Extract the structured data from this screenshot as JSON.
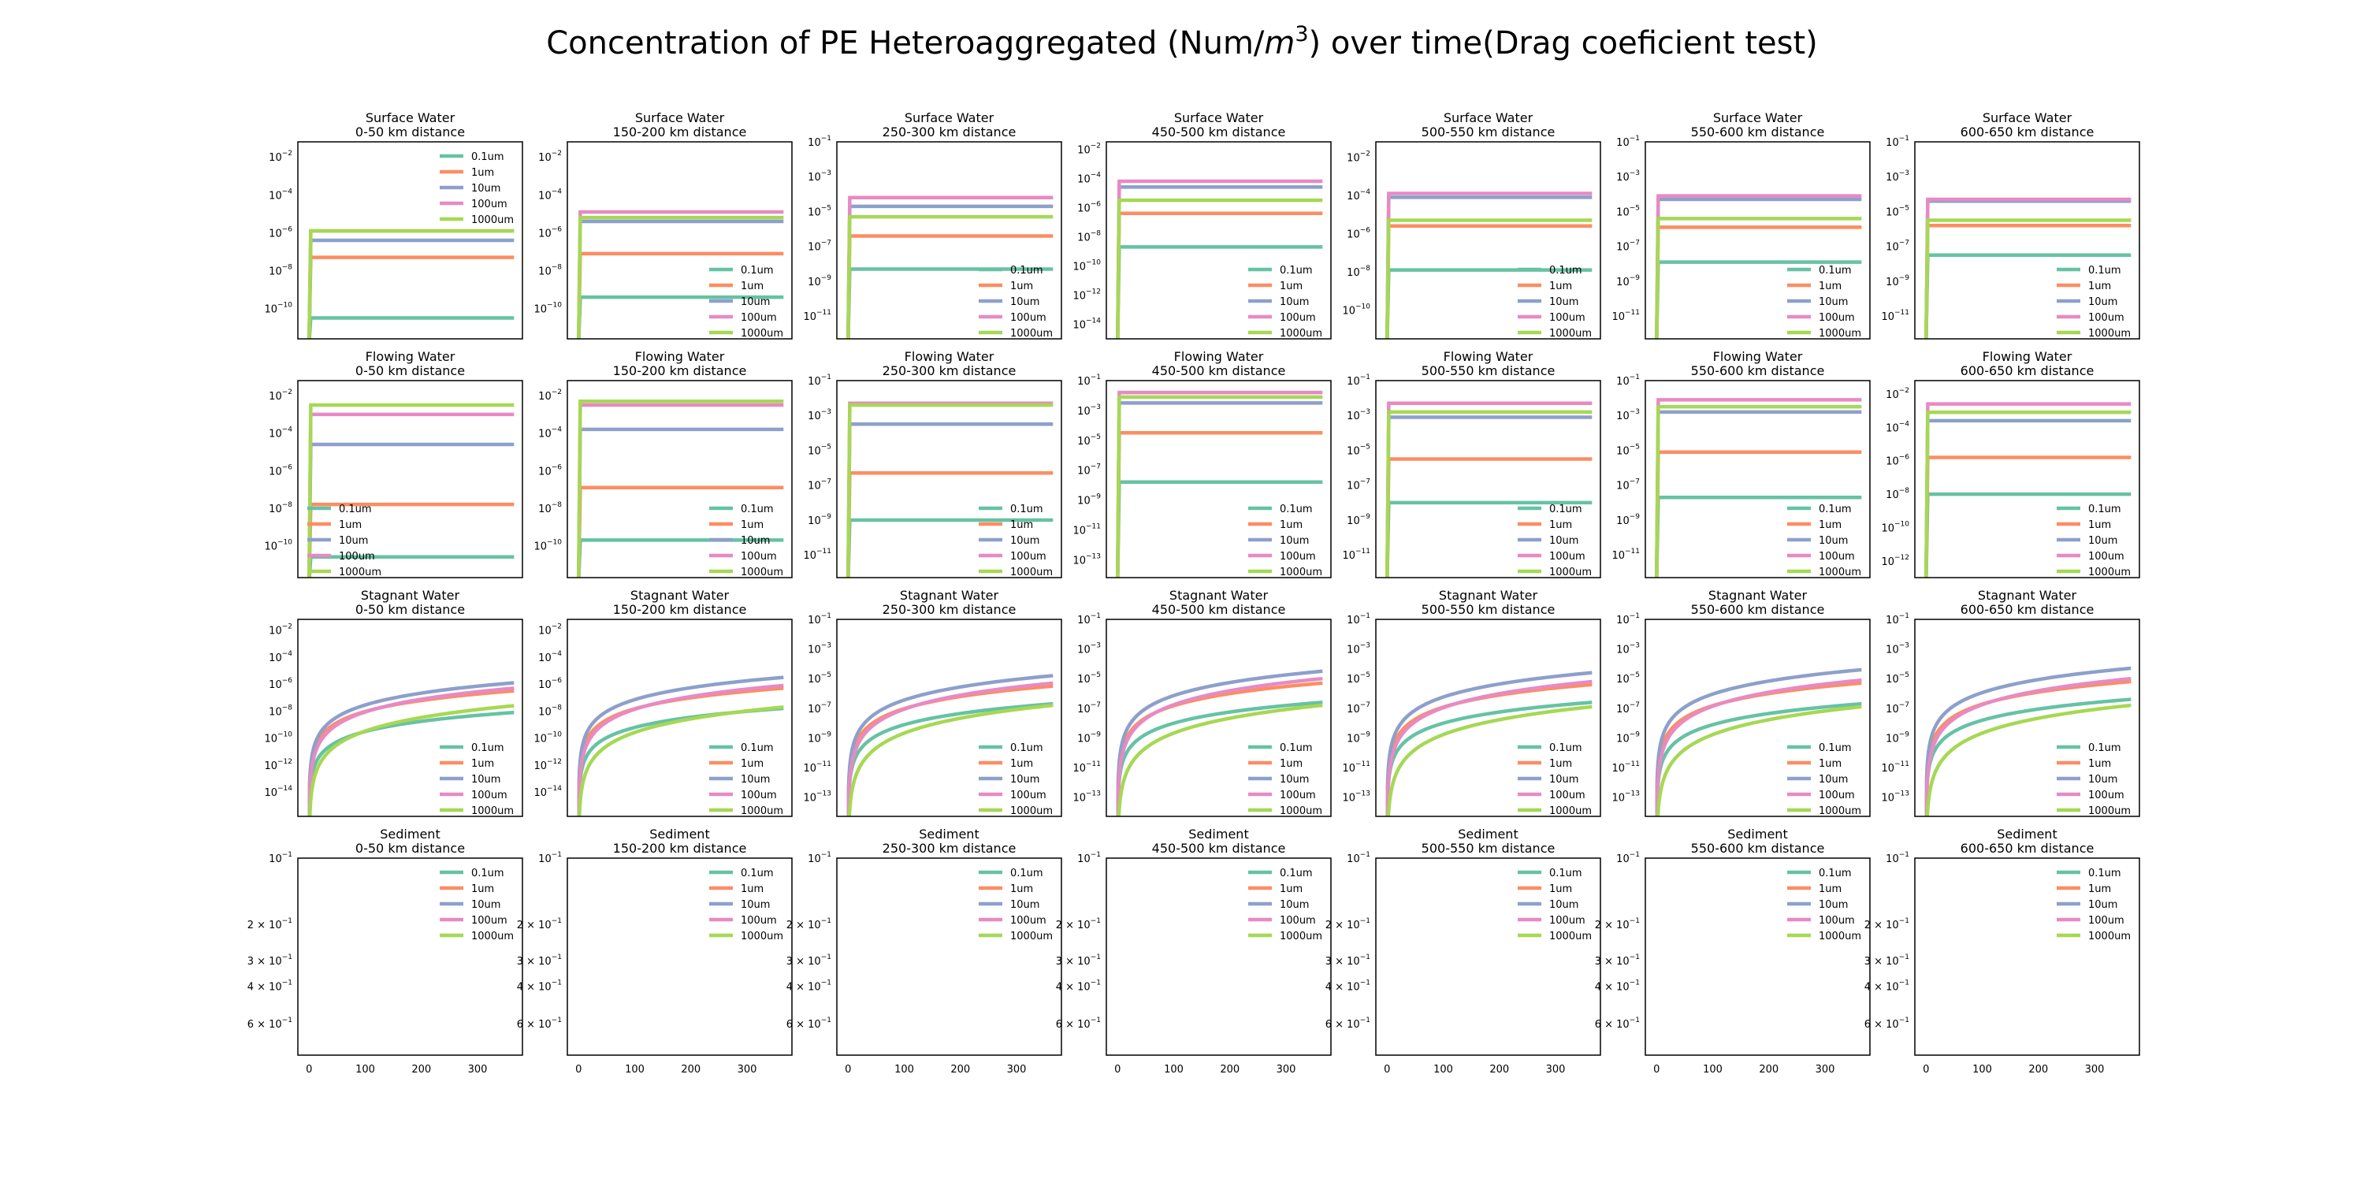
{
  "title_main": "Concentration of PE Heteroaggregated (Num/",
  "title_unit": "m",
  "title_exp": "3",
  "title_tail": ") over time(Drag coeficient test)",
  "colors": {
    "0.1um": "#66c2a5",
    "1um": "#fc8d62",
    "10um": "#8da0cb",
    "100um": "#e78ac3",
    "1000um": "#a6d854"
  },
  "chart_data": {
    "type": "line",
    "compartments": [
      "Surface Water",
      "Flowing Water",
      "Stagnant Water",
      "Sediment"
    ],
    "distances": [
      "0-50 km distance",
      "150-200 km distance",
      "250-300 km distance",
      "450-500 km distance",
      "500-550 km distance",
      "550-600 km distance",
      "600-650 km distance"
    ],
    "series_names": [
      "0.1um",
      "1um",
      "10um",
      "100um",
      "1000um"
    ],
    "x_ticks": [
      "0",
      "100",
      "200",
      "300"
    ],
    "xlim": [
      -20,
      380
    ],
    "sediment_ticks": [
      "10",
      "−1",
      "2 × 10",
      "−1",
      "3 × 10",
      "−1",
      "4 × 10",
      "−1",
      "6 × 10",
      "−1"
    ],
    "surface": [
      {
        "ylim": [
          -11.6,
          -1.2
        ],
        "ticks": [
          "-2",
          "-4",
          "-6",
          "-8",
          "-10"
        ],
        "levels": [
          -10.5,
          -7.3,
          -6.4,
          -5.9,
          -5.9
        ],
        "legend": "upper right"
      },
      {
        "ylim": [
          -11.6,
          -1.2
        ],
        "ticks": [
          "-2",
          "-4",
          "-6",
          "-8",
          "-10"
        ],
        "levels": [
          -9.4,
          -7.1,
          -5.4,
          -4.9,
          -5.2
        ],
        "legend": "lower right"
      },
      {
        "ylim": [
          -12.3,
          -1.0
        ],
        "ticks": [
          "-1",
          "-3",
          "-5",
          "-7",
          "-9",
          "-11"
        ],
        "levels": [
          -8.3,
          -6.4,
          -4.7,
          -4.2,
          -5.3
        ],
        "legend": "lower right"
      },
      {
        "ylim": [
          -15.0,
          -1.5
        ],
        "ticks": [
          "-2",
          "-4",
          "-6",
          "-8",
          "-10",
          "-12",
          "-14"
        ],
        "levels": [
          -8.7,
          -6.4,
          -4.6,
          -4.2,
          -5.5
        ],
        "legend": "lower right"
      },
      {
        "ylim": [
          -11.5,
          -1.2
        ],
        "ticks": [
          "-2",
          "-4",
          "-6",
          "-8",
          "-10"
        ],
        "levels": [
          -7.9,
          -5.6,
          -4.1,
          -3.9,
          -5.3
        ],
        "legend": "lower right"
      },
      {
        "ylim": [
          -12.3,
          -1.0
        ],
        "ticks": [
          "-1",
          "-3",
          "-5",
          "-7",
          "-9",
          "-11"
        ],
        "levels": [
          -7.9,
          -5.9,
          -4.3,
          -4.1,
          -5.4
        ],
        "legend": "lower right"
      },
      {
        "ylim": [
          -12.3,
          -1.0
        ],
        "ticks": [
          "-1",
          "-3",
          "-5",
          "-7",
          "-9",
          "-11"
        ],
        "levels": [
          -7.5,
          -5.8,
          -4.4,
          -4.3,
          -5.5
        ],
        "legend": "lower right"
      }
    ],
    "flowing": [
      {
        "ylim": [
          -11.7,
          -1.2
        ],
        "ticks": [
          "-2",
          "-4",
          "-6",
          "-8",
          "-10"
        ],
        "levels": [
          -10.6,
          -7.8,
          -4.6,
          -3.0,
          -2.5
        ],
        "legend": "lower left"
      },
      {
        "ylim": [
          -11.7,
          -1.2
        ],
        "ticks": [
          "-2",
          "-4",
          "-6",
          "-8",
          "-10"
        ],
        "levels": [
          -9.7,
          -6.9,
          -3.8,
          -2.5,
          -2.3
        ],
        "legend": "lower right"
      },
      {
        "ylim": [
          -12.3,
          -1.0
        ],
        "ticks": [
          "-1",
          "-3",
          "-5",
          "-7",
          "-9",
          "-11"
        ],
        "levels": [
          -9.0,
          -6.3,
          -3.5,
          -2.3,
          -2.4
        ],
        "legend": "lower right"
      },
      {
        "ylim": [
          -14.2,
          -1.0
        ],
        "ticks": [
          "-1",
          "-3",
          "-5",
          "-7",
          "-9",
          "-11",
          "-13"
        ],
        "levels": [
          -7.8,
          -4.5,
          -2.5,
          -1.8,
          -2.1
        ],
        "legend": "lower right"
      },
      {
        "ylim": [
          -12.3,
          -1.0
        ],
        "ticks": [
          "-1",
          "-3",
          "-5",
          "-7",
          "-9",
          "-11"
        ],
        "levels": [
          -8.0,
          -5.5,
          -3.1,
          -2.3,
          -2.8
        ],
        "legend": "lower right"
      },
      {
        "ylim": [
          -12.3,
          -1.0
        ],
        "ticks": [
          "-1",
          "-3",
          "-5",
          "-7",
          "-9",
          "-11"
        ],
        "levels": [
          -7.7,
          -5.1,
          -2.8,
          -2.1,
          -2.5
        ],
        "legend": "lower right"
      },
      {
        "ylim": [
          -13.0,
          -1.2
        ],
        "ticks": [
          "-2",
          "-4",
          "-6",
          "-8",
          "-10",
          "-12"
        ],
        "levels": [
          -8.0,
          -5.8,
          -3.6,
          -2.6,
          -3.1
        ],
        "legend": "lower right"
      }
    ],
    "stagnant": [
      {
        "ylim": [
          -15.8,
          -1.2
        ],
        "ticks": [
          "-2",
          "-4",
          "-6",
          "-8",
          "-10",
          "-12",
          "-14"
        ],
        "levels": [
          -8.1,
          -6.5,
          -5.9,
          -6.3,
          -7.6
        ],
        "legend": "lower right"
      },
      {
        "ylim": [
          -15.8,
          -1.2
        ],
        "ticks": [
          "-2",
          "-4",
          "-6",
          "-8",
          "-10",
          "-12",
          "-14"
        ],
        "levels": [
          -7.8,
          -6.3,
          -5.5,
          -6.1,
          -7.7
        ],
        "legend": "lower right"
      },
      {
        "ylim": [
          -14.3,
          -1.0
        ],
        "ticks": [
          "-1",
          "-3",
          "-5",
          "-7",
          "-9",
          "-11",
          "-13"
        ],
        "levels": [
          -6.7,
          -5.5,
          -4.8,
          -5.3,
          -6.8
        ],
        "legend": "lower right"
      },
      {
        "ylim": [
          -14.3,
          -1.0
        ],
        "ticks": [
          "-1",
          "-3",
          "-5",
          "-7",
          "-9",
          "-11",
          "-13"
        ],
        "levels": [
          -6.6,
          -5.3,
          -4.5,
          -5.0,
          -6.8
        ],
        "legend": "lower right"
      },
      {
        "ylim": [
          -14.3,
          -1.0
        ],
        "ticks": [
          "-1",
          "-3",
          "-5",
          "-7",
          "-9",
          "-11",
          "-13"
        ],
        "levels": [
          -6.6,
          -5.4,
          -4.6,
          -5.2,
          -6.9
        ],
        "legend": "lower right"
      },
      {
        "ylim": [
          -14.3,
          -1.0
        ],
        "ticks": [
          "-1",
          "-3",
          "-5",
          "-7",
          "-9",
          "-11",
          "-13"
        ],
        "levels": [
          -6.7,
          -5.3,
          -4.4,
          -5.1,
          -6.9
        ],
        "legend": "lower right"
      },
      {
        "ylim": [
          -14.3,
          -1.0
        ],
        "ticks": [
          "-1",
          "-3",
          "-5",
          "-7",
          "-9",
          "-11",
          "-13"
        ],
        "levels": [
          -6.4,
          -5.2,
          -4.3,
          -5.0,
          -6.8
        ],
        "legend": "lower right"
      }
    ],
    "sediment_note": "no visible data; log y axis from 10^-1 down to 6×10^-1 (inverted)"
  }
}
